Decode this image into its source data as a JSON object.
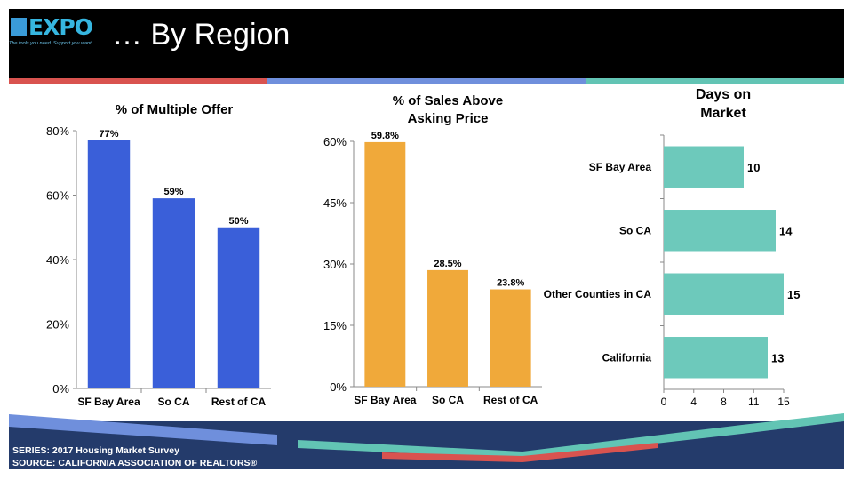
{
  "header": {
    "logo_text": "EXPO",
    "logo_tagline": "The tools you need. Support you want.",
    "title": "… By Region"
  },
  "colors": {
    "header_bg": "#000000",
    "stripe_red": "#d9534f",
    "stripe_blue": "#6f8fdc",
    "stripe_teal": "#62c4b4",
    "bar_blue": "#3a5fd9",
    "bar_orange": "#f0a93a",
    "bar_teal": "#6dc9bb",
    "footer_navy": "#243b6b"
  },
  "footer": {
    "series": "SERIES: 2017 Housing Market Survey",
    "source": "SOURCE:  CALIFORNIA ASSOCIATION OF REALTORS®"
  },
  "chart_data": [
    {
      "type": "bar",
      "title": "% of Multiple Offer",
      "categories": [
        "SF Bay Area",
        "So CA",
        "Rest of CA"
      ],
      "values": [
        77,
        59,
        50
      ],
      "data_labels": [
        "77%",
        "59%",
        "50%"
      ],
      "ylim": [
        0,
        80
      ],
      "yticks": [
        "0%",
        "20%",
        "40%",
        "60%",
        "80%"
      ],
      "color": "#3a5fd9"
    },
    {
      "type": "bar",
      "title": "% of Sales Above Asking Price",
      "categories": [
        "SF Bay Area",
        "So CA",
        "Rest of CA"
      ],
      "values": [
        59.8,
        28.5,
        23.8
      ],
      "data_labels": [
        "59.8%",
        "28.5%",
        "23.8%"
      ],
      "ylim": [
        0,
        60
      ],
      "yticks": [
        "0%",
        "15%",
        "30%",
        "45%",
        "60%"
      ],
      "color": "#f0a93a"
    },
    {
      "type": "bar",
      "orientation": "horizontal",
      "title": "Days on Market",
      "categories": [
        "SF Bay Area",
        "So CA",
        "Other Counties in CA",
        "California"
      ],
      "values": [
        10,
        14,
        15,
        13
      ],
      "data_labels": [
        "10",
        "14",
        "15",
        "13"
      ],
      "xlim": [
        0,
        15
      ],
      "xticks": [
        "0",
        "4",
        "8",
        "11",
        "15"
      ],
      "color": "#6dc9bb"
    }
  ]
}
